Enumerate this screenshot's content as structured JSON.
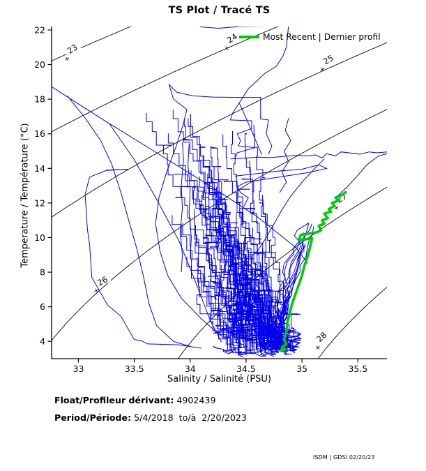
{
  "title": "TS Plot / Tracé TS",
  "legend": {
    "label": "Most Recent | Dernier profil",
    "color": "#00cc00"
  },
  "footer": {
    "float_label": "Float/Profileur dérivant:",
    "float_value": " 4902439",
    "period_label": "Period/Période:",
    "period_value": " 5/4/2018  to/à  2/20/2023",
    "credit": "ISDM | GDSI 02/20/23"
  },
  "chart_data": {
    "type": "line",
    "title": "TS Plot / Tracé TS",
    "xlabel": "Salinity / Salinité (PSU)",
    "ylabel": "Temperature / Température (°C)",
    "xlim": [
      32.76,
      35.76
    ],
    "ylim": [
      3.0,
      22.2
    ],
    "xticks": [
      33,
      33.5,
      34,
      34.5,
      35,
      35.5
    ],
    "yticks": [
      4,
      6,
      8,
      10,
      12,
      14,
      16,
      18,
      20,
      22
    ],
    "grid": false,
    "legend_position": "top-right-inside",
    "profile_color": "#0000ee",
    "contour_color": "#000000",
    "isopycnals": {
      "levels": [
        23,
        24,
        25,
        26,
        27,
        28
      ],
      "labels": [
        {
          "text": "23",
          "S": 32.945,
          "T": 20.9,
          "angle": -33
        },
        {
          "text": "24",
          "S": 34.375,
          "T": 21.52,
          "angle": -33
        },
        {
          "text": "25",
          "S": 35.235,
          "T": 20.28,
          "angle": -30
        },
        {
          "text": "26",
          "S": 33.215,
          "T": 7.48,
          "angle": -28
        },
        {
          "text": "27",
          "S": 35.355,
          "T": 12.28,
          "angle": -32
        },
        {
          "text": "28",
          "S": 35.175,
          "T": 4.25,
          "angle": -42
        }
      ]
    },
    "most_recent_profile": {
      "name": "Most Recent | Dernier profil",
      "color": "#00cc00",
      "points": [
        [
          35.39,
          12.62
        ],
        [
          35.36,
          12.48
        ],
        [
          35.3,
          12.3
        ],
        [
          35.33,
          12.15
        ],
        [
          35.27,
          12.0
        ],
        [
          35.29,
          11.82
        ],
        [
          35.24,
          11.65
        ],
        [
          35.26,
          11.5
        ],
        [
          35.2,
          11.38
        ],
        [
          35.23,
          11.12
        ],
        [
          35.18,
          11.0
        ],
        [
          35.2,
          10.8
        ],
        [
          35.15,
          10.68
        ],
        [
          35.17,
          10.42
        ],
        [
          35.13,
          10.3
        ],
        [
          34.99,
          10.15
        ],
        [
          34.97,
          9.85
        ],
        [
          35.09,
          9.95
        ],
        [
          35.07,
          9.4
        ],
        [
          35.05,
          8.9
        ],
        [
          35.02,
          8.35
        ],
        [
          35.0,
          7.8
        ],
        [
          34.97,
          7.25
        ],
        [
          34.94,
          6.7
        ],
        [
          34.91,
          6.15
        ],
        [
          34.89,
          5.6
        ],
        [
          34.87,
          5.1
        ],
        [
          34.86,
          4.55
        ],
        [
          34.84,
          4.1
        ],
        [
          34.86,
          3.85
        ],
        [
          34.82,
          3.65
        ],
        [
          34.85,
          3.52
        ],
        [
          34.81,
          3.45
        ]
      ]
    },
    "profiles": {
      "color": "#0000ee",
      "strands": [
        [
          [
            34.09,
            22.18
          ],
          [
            34.25,
            22.1
          ],
          [
            34.45,
            22.2
          ],
          [
            34.7,
            22.22
          ],
          [
            34.88,
            22.26
          ],
          [
            34.86,
            21.0
          ],
          [
            34.83,
            20.5
          ],
          [
            34.77,
            19.9
          ],
          [
            34.67,
            19.5
          ],
          [
            34.52,
            18.6
          ],
          [
            34.44,
            17.8
          ],
          [
            34.38,
            17.2
          ],
          [
            34.36,
            16.8
          ],
          [
            34.55,
            16.75
          ],
          [
            34.55,
            16.3
          ],
          [
            34.42,
            16.0
          ],
          [
            34.45,
            15.6
          ],
          [
            34.43,
            15.3
          ],
          [
            34.58,
            15.2
          ],
          [
            34.42,
            14.9
          ],
          [
            34.4,
            14.6
          ]
        ],
        [
          [
            34.28,
            4.3
          ],
          [
            34.1,
            5.3
          ],
          [
            33.92,
            6.5
          ],
          [
            33.8,
            7.8
          ],
          [
            33.73,
            9.2
          ],
          [
            33.69,
            10.8
          ],
          [
            33.72,
            12.3
          ],
          [
            33.79,
            13.8
          ],
          [
            33.87,
            15.2
          ],
          [
            33.94,
            16.6
          ],
          [
            33.97,
            17.4
          ],
          [
            33.85,
            18.0
          ],
          [
            33.81,
            18.85
          ],
          [
            33.88,
            18.4
          ],
          [
            34.02,
            18.2
          ],
          [
            34.2,
            18.12
          ],
          [
            34.45,
            18.1
          ],
          [
            34.63,
            18.1
          ],
          [
            34.63,
            16.85
          ],
          [
            34.7,
            16.8
          ],
          [
            34.68,
            16.0
          ],
          [
            34.73,
            15.3
          ],
          [
            34.7,
            14.8
          ]
        ],
        [
          [
            34.36,
            14.55
          ],
          [
            34.5,
            14.6
          ],
          [
            34.62,
            14.65
          ],
          [
            34.72,
            14.62
          ],
          [
            34.85,
            14.7
          ],
          [
            34.95,
            14.75
          ],
          [
            35.05,
            14.72
          ],
          [
            35.12,
            14.78
          ],
          [
            35.18,
            14.6
          ],
          [
            35.22,
            14.85
          ],
          [
            35.3,
            14.72
          ],
          [
            35.35,
            14.95
          ],
          [
            35.42,
            14.9
          ],
          [
            35.52,
            14.82
          ],
          [
            35.6,
            14.95
          ],
          [
            35.67,
            14.9
          ],
          [
            35.76,
            14.95
          ]
        ],
        [
          [
            34.4,
            13.55
          ],
          [
            34.6,
            13.7
          ],
          [
            34.8,
            13.85
          ],
          [
            35.0,
            13.95
          ],
          [
            35.15,
            14.2
          ],
          [
            35.22,
            14.0
          ],
          [
            35.05,
            13.75
          ],
          [
            34.85,
            13.55
          ],
          [
            34.65,
            13.35
          ],
          [
            34.5,
            13.2
          ],
          [
            34.42,
            12.95
          ],
          [
            34.45,
            12.6
          ],
          [
            34.52,
            12.3
          ],
          [
            34.48,
            11.8
          ]
        ],
        [
          [
            35.3,
            12.3
          ],
          [
            35.4,
            12.9
          ],
          [
            35.5,
            13.6
          ],
          [
            35.58,
            14.2
          ],
          [
            35.68,
            14.7
          ],
          [
            35.76,
            14.85
          ]
        ],
        [
          [
            32.76,
            18.72
          ],
          [
            33.2,
            16.9
          ],
          [
            33.7,
            14.9
          ],
          [
            34.2,
            12.9
          ],
          [
            34.6,
            11.2
          ],
          [
            34.95,
            9.4
          ],
          [
            35.05,
            8.5
          ]
        ],
        [
          [
            33.28,
            16.55
          ],
          [
            33.5,
            14.5
          ],
          [
            33.7,
            12.2
          ],
          [
            33.9,
            9.8
          ],
          [
            34.05,
            7.4
          ],
          [
            34.18,
            5.2
          ],
          [
            34.28,
            3.95
          ]
        ],
        [
          [
            32.9,
            18.2
          ],
          [
            33.05,
            17.0
          ],
          [
            33.2,
            15.6
          ],
          [
            33.3,
            14.2
          ],
          [
            33.38,
            12.6
          ],
          [
            33.45,
            11.0
          ],
          [
            33.52,
            9.4
          ],
          [
            33.58,
            7.8
          ],
          [
            33.63,
            6.2
          ],
          [
            33.7,
            4.9
          ],
          [
            33.85,
            4.0
          ],
          [
            34.0,
            3.7
          ]
        ],
        [
          [
            33.25,
            13.9
          ],
          [
            33.45,
            13.95
          ],
          [
            33.25,
            13.88
          ],
          [
            33.1,
            13.5
          ],
          [
            33.06,
            12.5
          ],
          [
            33.07,
            11.5
          ],
          [
            33.08,
            10.5
          ],
          [
            33.1,
            9.6
          ],
          [
            33.12,
            7.7
          ],
          [
            33.26,
            6.1
          ],
          [
            33.38,
            5.45
          ],
          [
            33.5,
            4.1
          ],
          [
            33.56,
            4.05
          ],
          [
            33.62,
            3.85
          ],
          [
            33.9,
            3.8
          ],
          [
            34.1,
            3.6
          ]
        ],
        [
          [
            33.93,
            15.5
          ],
          [
            33.94,
            14.5
          ],
          [
            33.92,
            13.0
          ],
          [
            33.93,
            11.7
          ],
          [
            33.91,
            10.3
          ],
          [
            33.93,
            9.0
          ],
          [
            33.92,
            8.0
          ]
        ],
        [
          [
            33.99,
            15.4
          ],
          [
            33.98,
            14.2
          ],
          [
            34.0,
            12.8
          ],
          [
            33.99,
            11.4
          ],
          [
            34.01,
            10.0
          ],
          [
            34.0,
            8.8
          ]
        ],
        [
          [
            35.2,
            14.55
          ],
          [
            35.1,
            13.9
          ],
          [
            35.0,
            13.2
          ],
          [
            34.9,
            12.4
          ],
          [
            34.82,
            11.6
          ],
          [
            34.75,
            10.8
          ],
          [
            34.68,
            10.0
          ],
          [
            34.6,
            9.2
          ]
        ],
        [
          [
            34.44,
            17.75
          ],
          [
            34.48,
            17.2
          ],
          [
            34.52,
            16.6
          ],
          [
            34.56,
            16.0
          ],
          [
            34.6,
            15.4
          ],
          [
            34.64,
            14.8
          ]
        ],
        [
          [
            34.88,
            16.9
          ],
          [
            34.85,
            16.2
          ],
          [
            34.9,
            15.6
          ],
          [
            34.84,
            15.0
          ],
          [
            34.88,
            14.4
          ],
          [
            34.82,
            13.8
          ],
          [
            34.86,
            13.2
          ],
          [
            34.8,
            12.6
          ]
        ]
      ],
      "ridge_path": [
        [
          3.5,
          34.83
        ],
        [
          5.0,
          34.86
        ],
        [
          7.0,
          34.94
        ],
        [
          9.0,
          35.05
        ],
        [
          10.5,
          35.13
        ],
        [
          11.5,
          35.22
        ],
        [
          12.6,
          35.38
        ]
      ],
      "procedural": {
        "seed": 42,
        "cloud_count": 110,
        "ridge_count": 16,
        "squiggle_count": 30,
        "vertical_count": 7,
        "cloud_start_region": {
          "S": [
            34.33,
            34.95
          ],
          "T": [
            3.2,
            4.35
          ]
        }
      }
    }
  }
}
